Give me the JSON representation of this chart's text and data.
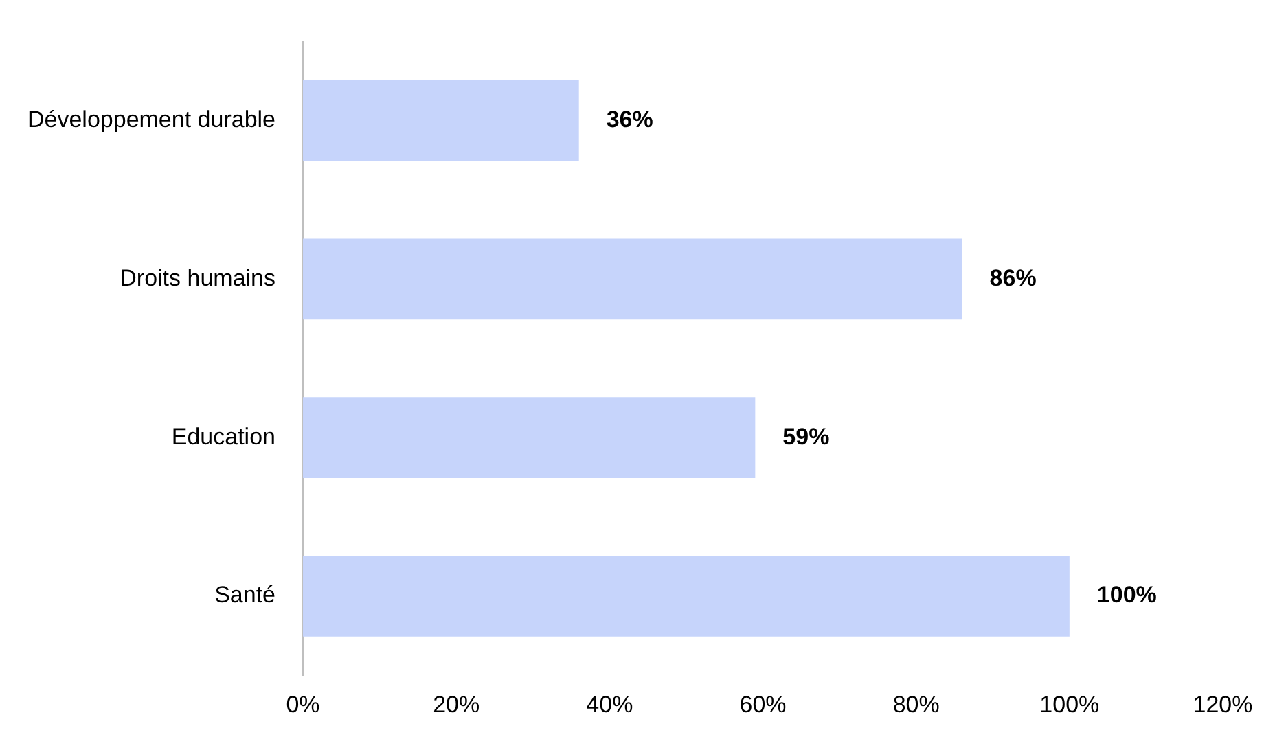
{
  "chart_data": {
    "type": "bar",
    "orientation": "horizontal",
    "categories": [
      "Développement durable",
      "Droits humains",
      "Education",
      "Santé"
    ],
    "series": [
      {
        "color": "#c6d4fb",
        "values": [
          36,
          86,
          59,
          100
        ],
        "value_labels": [
          "36%",
          "86%",
          "59%",
          "100%"
        ]
      }
    ],
    "xlim": [
      0,
      120
    ],
    "xticks": [
      {
        "value": 0,
        "label": "0%"
      },
      {
        "value": 20,
        "label": "20%"
      },
      {
        "value": 40,
        "label": "40%"
      },
      {
        "value": 60,
        "label": "60%"
      },
      {
        "value": 80,
        "label": "80%"
      },
      {
        "value": 100,
        "label": "100%"
      },
      {
        "value": 120,
        "label": "120%"
      }
    ],
    "grid": false,
    "legend": false
  }
}
